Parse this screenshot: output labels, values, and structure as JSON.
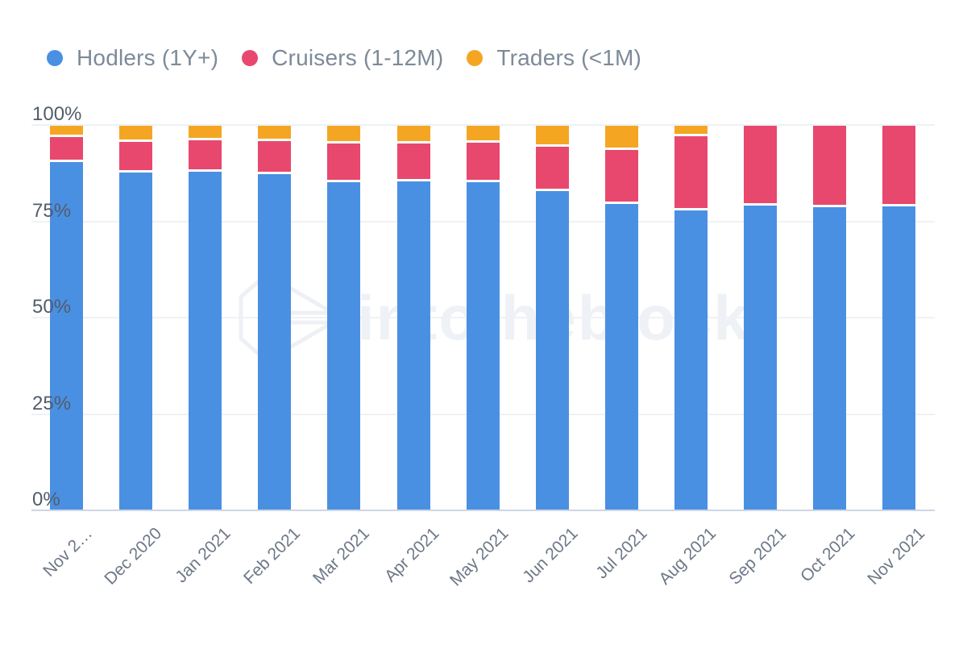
{
  "legend": {
    "items": [
      {
        "label": "Hodlers (1Y+)",
        "color": "#4a90e2"
      },
      {
        "label": "Cruisers (1-12M)",
        "color": "#e8486e"
      },
      {
        "label": "Traders (<1M)",
        "color": "#f4a623"
      }
    ]
  },
  "y_axis": {
    "ticks": [
      {
        "label": "100%",
        "value": 100
      },
      {
        "label": "75%",
        "value": 75
      },
      {
        "label": "50%",
        "value": 50
      },
      {
        "label": "25%",
        "value": 25
      },
      {
        "label": "0%",
        "value": 0
      }
    ]
  },
  "watermark": {
    "text": "intotheblock"
  },
  "colors": {
    "hodlers": "#4a90e2",
    "cruisers": "#e8486e",
    "traders": "#f4a623",
    "gridline": "#eef1f5",
    "axis_line": "#ccd6e5",
    "y_label": "#525c6b",
    "x_label": "#6d7886",
    "legend_text": "#7d8a99",
    "background": "#ffffff"
  },
  "chart_data": {
    "type": "bar",
    "stacked": true,
    "unit": "%",
    "ylim": [
      0,
      100
    ],
    "grid": "horizontal",
    "legend_position": "top-left",
    "categories": [
      "Nov 2…",
      "Dec 2020",
      "Jan 2021",
      "Feb 2021",
      "Mar 2021",
      "Apr 2021",
      "May 2021",
      "Jun 2021",
      "Jul 2021",
      "Aug 2021",
      "Sep 2021",
      "Oct 2021",
      "Nov 2021"
    ],
    "series": [
      {
        "name": "Hodlers (1Y+)",
        "color": "#4a90e2",
        "values": [
          90.6,
          87.9,
          88.0,
          87.5,
          85.4,
          85.6,
          85.2,
          82.9,
          79.7,
          78.0,
          79.1,
          78.8,
          79.0
        ]
      },
      {
        "name": "Cruisers (1-12M)",
        "color": "#e8486e",
        "values": [
          6.5,
          7.9,
          8.3,
          8.6,
          9.9,
          9.8,
          10.3,
          11.6,
          14.1,
          19.2,
          20.9,
          21.2,
          21.0
        ]
      },
      {
        "name": "Traders (<1M)",
        "color": "#f4a623",
        "values": [
          2.9,
          4.2,
          3.7,
          3.9,
          4.7,
          4.6,
          4.5,
          5.5,
          6.2,
          2.8,
          0,
          0,
          0
        ]
      }
    ]
  }
}
